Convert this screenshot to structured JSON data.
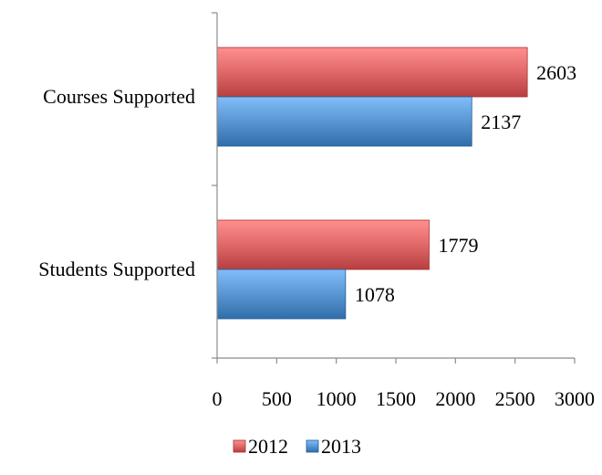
{
  "chart_data": {
    "type": "bar",
    "orientation": "horizontal",
    "categories": [
      "Courses Supported",
      "Students Supported"
    ],
    "series": [
      {
        "name": "2012",
        "values": [
          2603,
          1779
        ],
        "color": "#e46c6c"
      },
      {
        "name": "2013",
        "values": [
          2137,
          1078
        ],
        "color": "#5d9ad6"
      }
    ],
    "xlim": [
      0,
      3000
    ],
    "xticks": [
      0,
      500,
      1000,
      1500,
      2000,
      2500,
      3000
    ],
    "title": "",
    "xlabel": "",
    "ylabel": "",
    "grid": false,
    "legend": "bottom",
    "data_labels": true
  }
}
